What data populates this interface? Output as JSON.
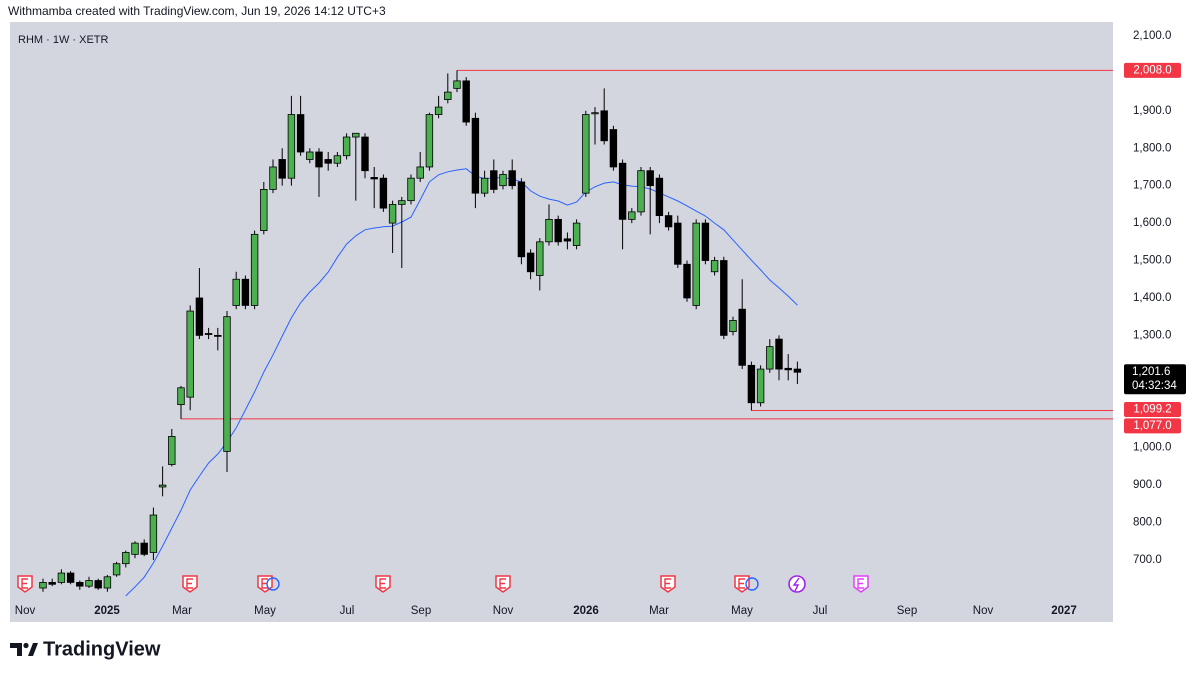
{
  "chart_data": {
    "type": "candlestick",
    "credit": "Withmamba created with TradingView.com, Jun 19, 2026 14:12 UTC+3",
    "title": "RHM · 1W · XETR",
    "brand": "TradingView",
    "up_color": "#4caf50",
    "down_color": "#000000",
    "open": [
      625,
      640,
      640,
      665,
      640,
      630,
      645,
      625,
      660,
      690,
      715,
      745,
      720,
      895,
      955,
      1115,
      1135,
      1400,
      1305,
      1300,
      990,
      1380,
      1450,
      1380,
      1580,
      1690,
      1770,
      1720,
      1890,
      1770,
      1790,
      1770,
      1760,
      1780,
      1830,
      1830,
      1722,
      1720,
      1600,
      1650,
      1660,
      1720,
      1750,
      1890,
      1930,
      1960,
      1980,
      1880,
      1680,
      1740,
      1700,
      1740,
      1710,
      1520,
      1460,
      1550,
      1610,
      1558,
      1540,
      1680,
      1892,
      1900,
      1850,
      1760,
      1610,
      1630,
      1740,
      1720,
      1620,
      1600,
      1490,
      1380,
      1600,
      1470,
      1500,
      1310,
      1370,
      1220,
      1120,
      1210,
      1290,
      1212,
      1210
    ],
    "high": [
      650,
      650,
      675,
      670,
      645,
      655,
      650,
      660,
      695,
      725,
      750,
      755,
      840,
      950,
      1050,
      1165,
      1380,
      1480,
      1320,
      1320,
      1365,
      1470,
      1460,
      1580,
      1710,
      1770,
      1800,
      1940,
      1940,
      1800,
      1800,
      1790,
      1790,
      1840,
      1840,
      1840,
      1750,
      1730,
      1660,
      1670,
      1730,
      1790,
      1895,
      1940,
      2000,
      2008,
      1990,
      1895,
      1740,
      1770,
      1740,
      1770,
      1720,
      1530,
      1560,
      1650,
      1620,
      1575,
      1610,
      1900,
      1910,
      1960,
      1860,
      1770,
      1640,
      1750,
      1750,
      1730,
      1630,
      1620,
      1500,
      1610,
      1610,
      1510,
      1510,
      1350,
      1450,
      1230,
      1220,
      1290,
      1300,
      1250,
      1230
    ],
    "low": [
      615,
      630,
      635,
      635,
      620,
      625,
      620,
      615,
      655,
      680,
      705,
      710,
      700,
      870,
      950,
      1077,
      1100,
      1290,
      1290,
      1260,
      935,
      1370,
      1370,
      1370,
      1570,
      1680,
      1700,
      1700,
      1780,
      1760,
      1670,
      1740,
      1750,
      1770,
      1660,
      1720,
      1640,
      1630,
      1520,
      1480,
      1650,
      1710,
      1740,
      1880,
      1920,
      1950,
      1860,
      1640,
      1670,
      1680,
      1690,
      1690,
      1490,
      1450,
      1420,
      1540,
      1540,
      1530,
      1530,
      1670,
      1810,
      1810,
      1740,
      1530,
      1600,
      1620,
      1570,
      1600,
      1580,
      1480,
      1390,
      1370,
      1490,
      1460,
      1290,
      1300,
      1210,
      1099.2,
      1110,
      1200,
      1180,
      1180,
      1170
    ],
    "close": [
      640,
      635,
      665,
      640,
      630,
      645,
      625,
      655,
      690,
      720,
      745,
      715,
      820,
      900,
      1030,
      1160,
      1365,
      1300,
      1303,
      1298,
      1350,
      1450,
      1380,
      1570,
      1690,
      1750,
      1720,
      1890,
      1790,
      1790,
      1750,
      1760,
      1780,
      1830,
      1840,
      1740,
      1718,
      1640,
      1650,
      1660,
      1720,
      1750,
      1890,
      1910,
      1950,
      1980,
      1870,
      1680,
      1720,
      1690,
      1730,
      1700,
      1510,
      1470,
      1550,
      1610,
      1550,
      1552,
      1600,
      1890,
      1895,
      1820,
      1750,
      1610,
      1630,
      1740,
      1700,
      1620,
      1590,
      1490,
      1400,
      1600,
      1500,
      1500,
      1300,
      1340,
      1220,
      1120,
      1210,
      1270,
      1210,
      1208,
      1201.6
    ],
    "ma": {
      "color": "#2962ff",
      "values": [
        null,
        null,
        null,
        null,
        null,
        null,
        null,
        null,
        null,
        604,
        628,
        654,
        692,
        737,
        785,
        833,
        887,
        924,
        959,
        983,
        1015,
        1053,
        1101,
        1149,
        1202,
        1248,
        1298,
        1347,
        1387,
        1416,
        1440,
        1469,
        1509,
        1544,
        1566,
        1582,
        1587,
        1590,
        1592,
        1603,
        1616,
        1662,
        1710,
        1729,
        1737,
        1742,
        1745,
        1726,
        1718,
        1721,
        1721,
        1718,
        1710,
        1686,
        1672,
        1664,
        1659,
        1648,
        1656,
        1683,
        1697,
        1707,
        1710,
        1702,
        1699,
        1697,
        1691,
        1681,
        1670,
        1659,
        1646,
        1632,
        1619,
        1600,
        1582,
        1555,
        1528,
        1501,
        1475,
        1448,
        1427,
        1405,
        1381
      ]
    },
    "levels": [
      {
        "value": 2008,
        "label": "2,008.0",
        "color": "#f23645"
      },
      {
        "value": 1099.2,
        "label": "1,099.2",
        "color": "#f23645"
      },
      {
        "value": 1077,
        "label": "1,077.0",
        "color": "#f23645"
      }
    ],
    "last_price": {
      "value": 1201.6,
      "label": "1,201.6"
    },
    "countdown": "04:32:34",
    "ylim": [
      593,
      2148
    ],
    "yticks": [
      {
        "value": 2100,
        "label": "2,100.0"
      },
      {
        "value": 2000,
        "label": "2,000.0"
      },
      {
        "value": 1900,
        "label": "1,900.0"
      },
      {
        "value": 1800,
        "label": "1,800.0"
      },
      {
        "value": 1700,
        "label": "1,700.0"
      },
      {
        "value": 1600,
        "label": "1,600.0"
      },
      {
        "value": 1500,
        "label": "1,500.0"
      },
      {
        "value": 1400,
        "label": "1,400.0"
      },
      {
        "value": 1300,
        "label": "1,300.0"
      },
      {
        "value": 1200,
        "label": "1,200.0"
      },
      {
        "value": 1100,
        "label": "1,100.0"
      },
      {
        "value": 1000,
        "label": "1,000.0"
      },
      {
        "value": 900,
        "label": "900.0"
      },
      {
        "value": 800,
        "label": "800.0"
      },
      {
        "value": 700,
        "label": "700.0"
      }
    ],
    "xlabels": [
      "Nov",
      "2025",
      "Mar",
      "May",
      "Jul",
      "Sep",
      "Nov",
      "2026",
      "Mar",
      "May",
      "Jul",
      "Sep",
      "Nov",
      "2027"
    ]
  }
}
